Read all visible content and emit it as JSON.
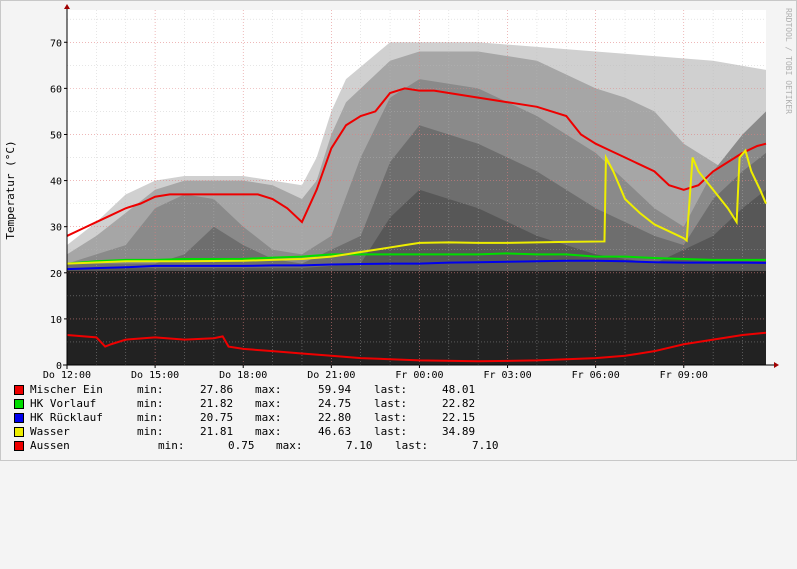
{
  "watermark": "RRDTOOL / TOBI OETIKER",
  "chart_data": {
    "type": "line",
    "ylabel": "Temperatur (°C)",
    "ylim": [
      0,
      77
    ],
    "yticks": [
      0,
      10,
      20,
      30,
      40,
      50,
      60,
      70
    ],
    "xlabels": [
      "Do 12:00",
      "Do 15:00",
      "Do 18:00",
      "Do 21:00",
      "Fr 00:00",
      "Fr 03:00",
      "Fr 06:00",
      "Fr 09:00"
    ],
    "xlabel_hours": [
      0,
      3,
      6,
      9,
      12,
      15,
      18,
      21
    ],
    "xlim_hours": [
      0,
      23.8
    ],
    "grid": true,
    "series": [
      {
        "name": "Mischer Ein",
        "color": "#ee0000",
        "x": [
          0,
          0.5,
          1,
          1.5,
          2,
          2.5,
          3,
          3.5,
          4,
          5,
          6,
          6.5,
          7,
          7.5,
          8,
          8.5,
          9,
          9.5,
          10,
          10.5,
          11,
          11.5,
          12,
          12.5,
          13,
          14,
          15,
          16,
          17,
          17.5,
          18,
          18.5,
          19,
          19.5,
          20,
          20.5,
          21,
          21.5,
          22,
          22.5,
          23,
          23.5,
          23.8
        ],
        "y": [
          28,
          29.5,
          31,
          32.5,
          34,
          35,
          36.5,
          37,
          37,
          37,
          37,
          37,
          36,
          34,
          31,
          38,
          47,
          52,
          54,
          55,
          59,
          60,
          59.5,
          59.5,
          59,
          58,
          57,
          56,
          54,
          50,
          48,
          46.5,
          45,
          43.5,
          42,
          39,
          38,
          39,
          42,
          44,
          46,
          47.5,
          48
        ]
      },
      {
        "name": "HK Vorlauf",
        "color": "#00dd00",
        "x": [
          0,
          1,
          2,
          3,
          4,
          5,
          6,
          7,
          8,
          9,
          10,
          11,
          12,
          13,
          14,
          15,
          16,
          17,
          18,
          19,
          20,
          21,
          22,
          23,
          23.8
        ],
        "y": [
          22,
          22.5,
          22.8,
          22.8,
          23,
          23,
          23,
          23.3,
          23.5,
          24,
          24,
          24,
          24,
          24,
          24,
          24.2,
          24,
          24,
          23.5,
          23.5,
          23.2,
          23,
          22.8,
          22.8,
          22.8
        ]
      },
      {
        "name": "HK Rücklauf",
        "color": "#0000ee",
        "x": [
          0,
          1,
          2,
          3,
          4,
          5,
          6,
          7,
          8,
          9,
          10,
          11,
          12,
          13,
          14,
          15,
          16,
          17,
          18,
          19,
          20,
          21,
          22,
          23,
          23.8
        ],
        "y": [
          20.8,
          21,
          21.2,
          21.5,
          21.5,
          21.5,
          21.5,
          21.6,
          21.6,
          21.8,
          21.9,
          22,
          22,
          22.2,
          22.3,
          22.4,
          22.5,
          22.6,
          22.6,
          22.5,
          22.3,
          22.2,
          22.2,
          22.2,
          22.15
        ]
      },
      {
        "name": "Wasser",
        "color": "#eeee00",
        "x": [
          0,
          2,
          4,
          6,
          7,
          8,
          9,
          9.5,
          10,
          10.5,
          11,
          11.5,
          12,
          13,
          14,
          15,
          16,
          17,
          18.3,
          18.35,
          18.6,
          19,
          19.5,
          20,
          20.5,
          21,
          21.1,
          21.3,
          21.5,
          22,
          22.5,
          22.8,
          22.9,
          23.1,
          23.3,
          23.6,
          23.8
        ],
        "y": [
          22,
          22.5,
          22.5,
          22.6,
          22.8,
          23,
          23.5,
          24,
          24.5,
          25,
          25.5,
          26,
          26.5,
          26.6,
          26.5,
          26.5,
          26.6,
          26.7,
          26.8,
          45,
          42,
          36,
          33,
          30.5,
          29,
          27.5,
          27,
          45,
          42,
          38,
          34,
          31,
          45,
          46.5,
          42,
          38,
          35
        ]
      },
      {
        "name": "Aussen",
        "color": "#ee0000",
        "x": [
          0,
          1,
          1.3,
          1.5,
          2,
          3,
          4,
          5,
          5.3,
          5.5,
          6,
          7,
          8,
          9,
          10,
          12,
          14,
          16,
          18,
          19,
          20,
          21,
          22,
          23,
          23.8
        ],
        "y": [
          6.5,
          6,
          4,
          4.5,
          5.5,
          6,
          5.5,
          5.8,
          6.2,
          4,
          3.5,
          3,
          2.5,
          2,
          1.5,
          1,
          0.8,
          1,
          1.5,
          2,
          3,
          4.5,
          5.5,
          6.5,
          7
        ]
      }
    ]
  },
  "legend": [
    {
      "label": "Mischer Ein",
      "min_label": "min:",
      "min": "27.86",
      "max_label": "max:",
      "max": "59.94",
      "last_label": "last:",
      "last": "48.01",
      "color": "#ee0000"
    },
    {
      "label": "HK Vorlauf",
      "min_label": "min:",
      "min": "21.82",
      "max_label": "max:",
      "max": "24.75",
      "last_label": "last:",
      "last": "22.82",
      "color": "#00dd00"
    },
    {
      "label": "HK Rücklauf",
      "min_label": "min:",
      "min": "20.75",
      "max_label": "max:",
      "max": "22.80",
      "last_label": "last:",
      "last": "22.15",
      "color": "#0000ee"
    },
    {
      "label": "Wasser",
      "min_label": "min:",
      "min": "21.81",
      "max_label": "max:",
      "max": "46.63",
      "last_label": "last:",
      "last": "34.89",
      "color": "#eeee00"
    },
    {
      "label": "Aussen",
      "min_label": "min:",
      "min": "0.75",
      "max_label": "max:",
      "max": "7.10",
      "last_label": "last:",
      "last": "7.10",
      "color": "#ee0000"
    }
  ]
}
